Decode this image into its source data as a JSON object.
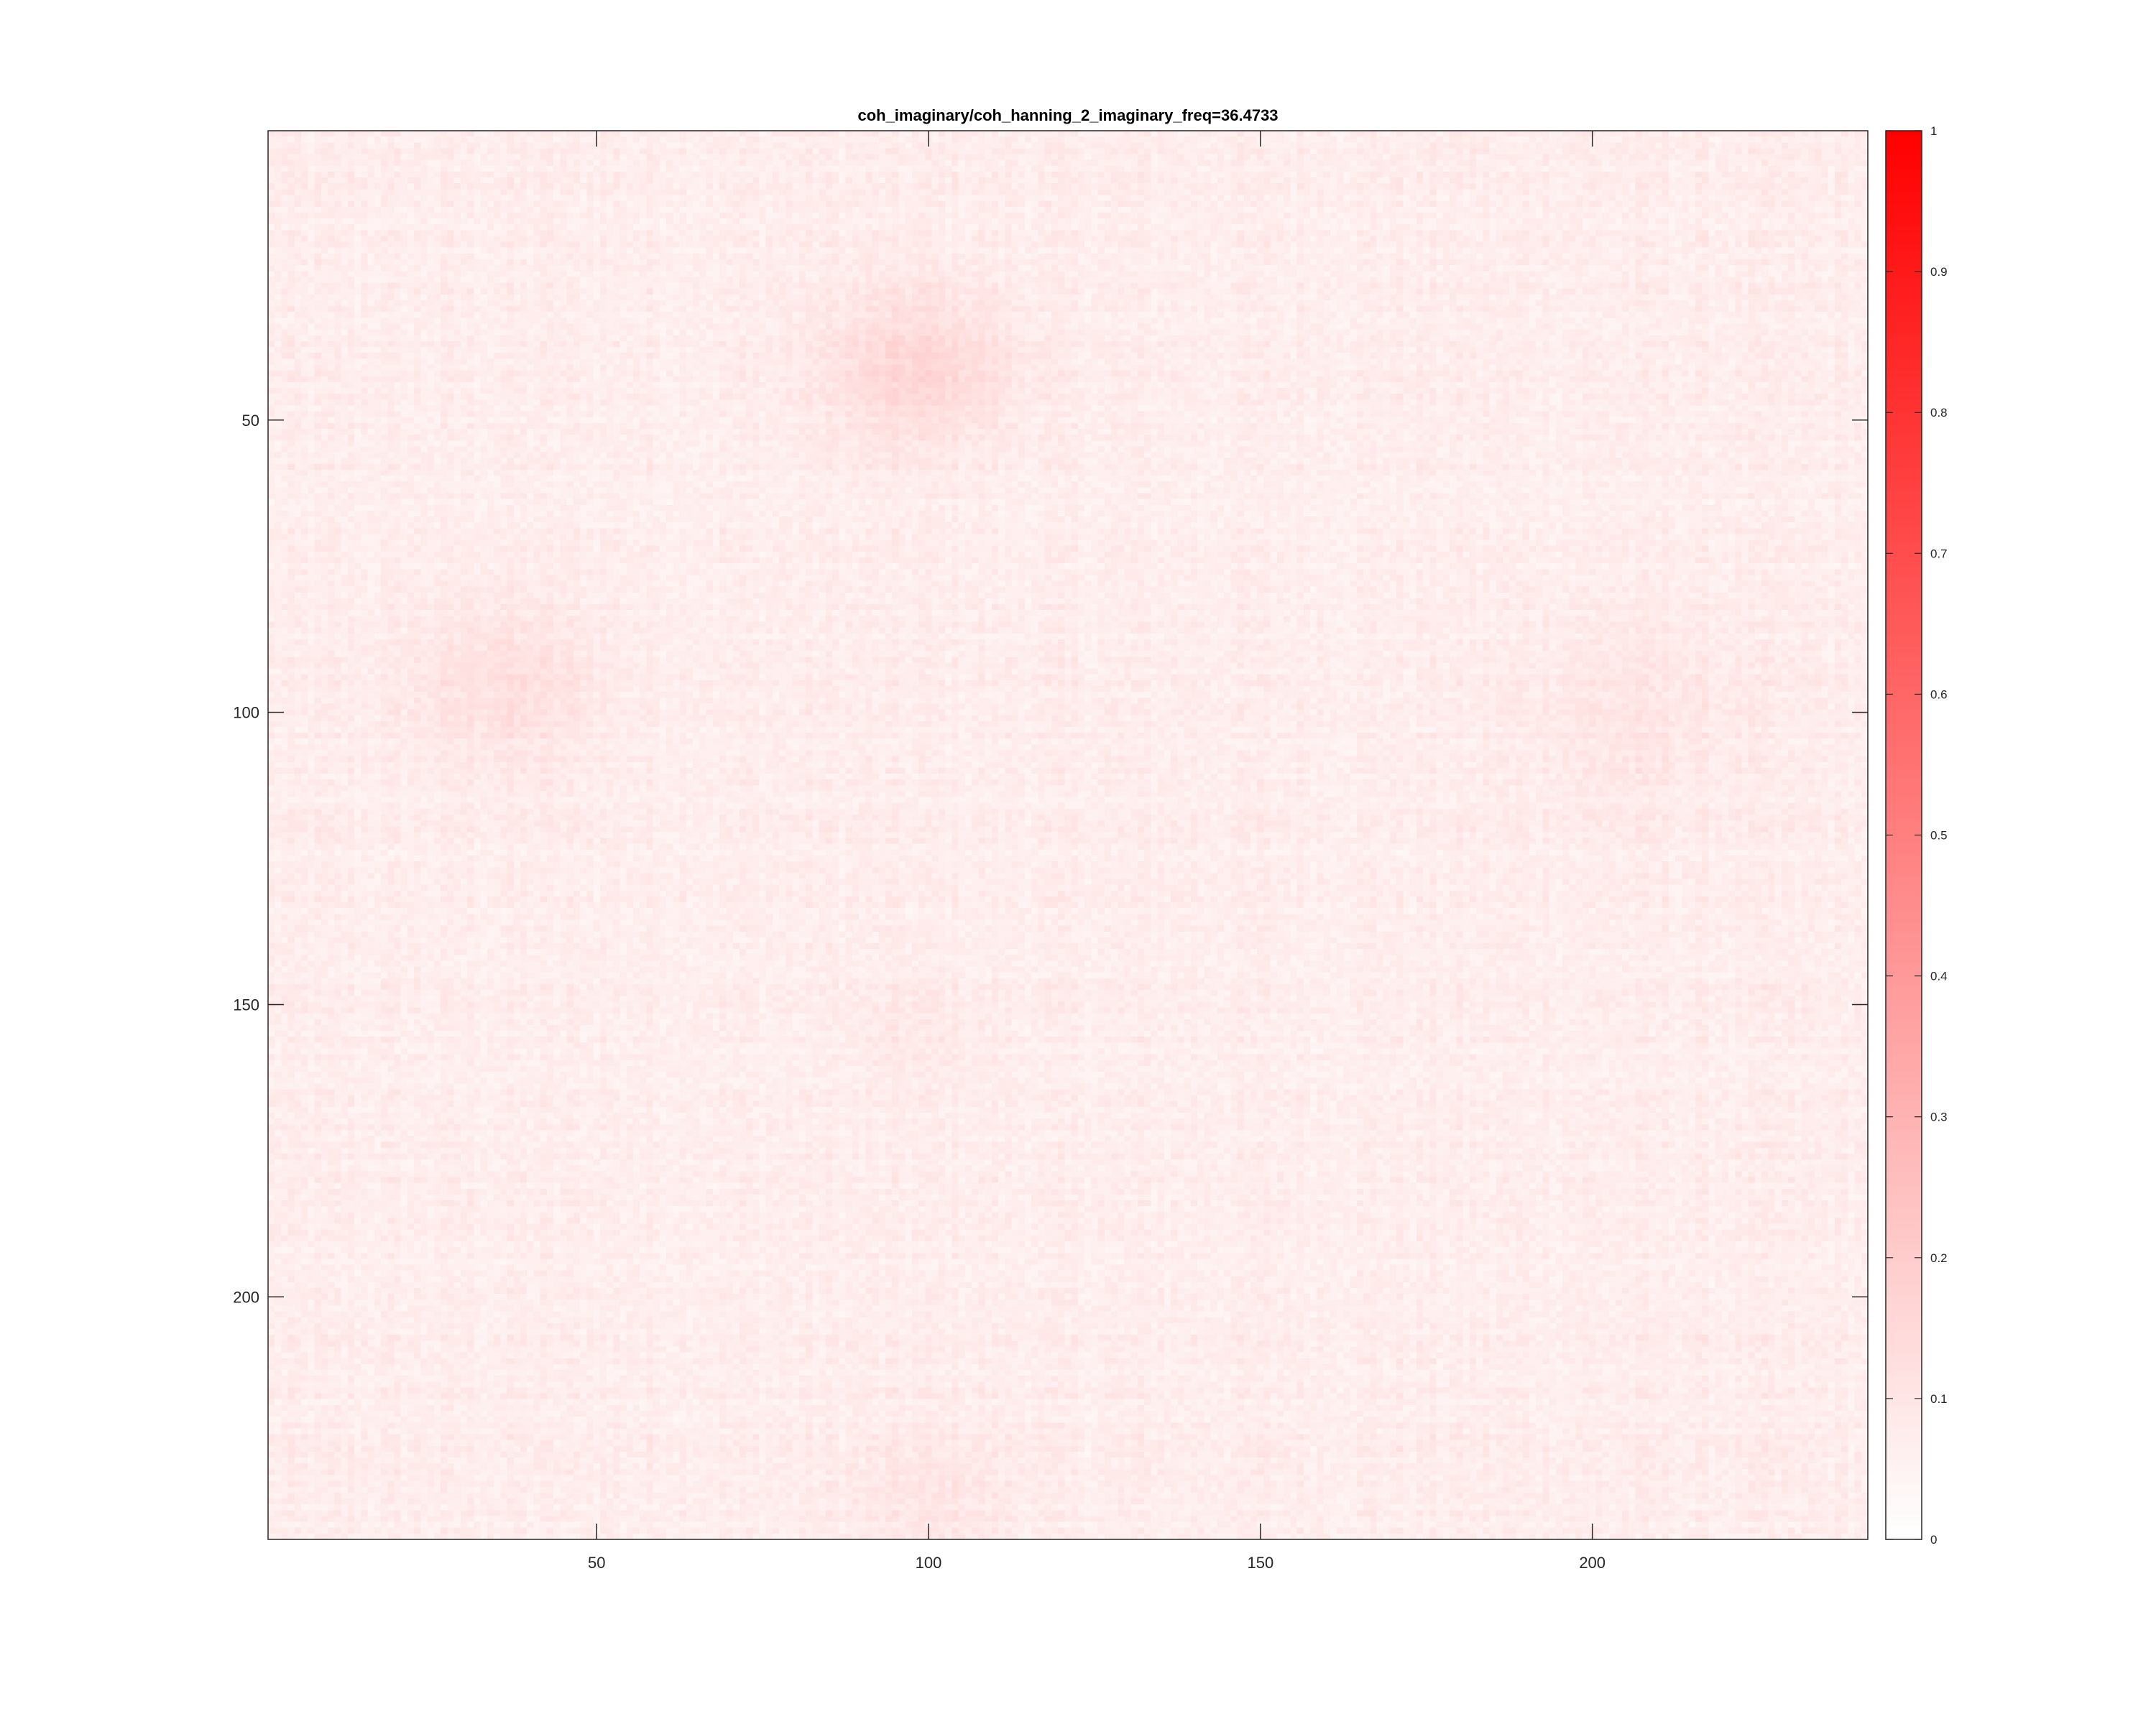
{
  "chart_data": {
    "type": "heatmap",
    "title": "coh_imaginary/coh_hanning_2_imaginary_freq=36.4733",
    "xlabel": "",
    "ylabel": "",
    "matrix_size": 241,
    "xlim": [
      0.5,
      241.5
    ],
    "ylim": [
      0.5,
      241.5
    ],
    "y_reversed": true,
    "x_ticks": [
      50,
      100,
      150,
      200
    ],
    "x_tick_labels": [
      "50",
      "100",
      "150",
      "200"
    ],
    "y_ticks": [
      50,
      100,
      150,
      200
    ],
    "y_tick_labels": [
      "50",
      "100",
      "150",
      "200"
    ],
    "colorbar": {
      "location": "right",
      "range": [
        0,
        1
      ],
      "ticks": [
        0,
        0.1,
        0.2,
        0.3,
        0.4,
        0.5,
        0.6,
        0.7,
        0.8,
        0.9,
        1
      ],
      "tick_labels": [
        "0",
        "0.1",
        "0.2",
        "0.3",
        "0.4",
        "0.5",
        "0.6",
        "0.7",
        "0.8",
        "0.9",
        "1"
      ],
      "colormap": [
        "#ffffff",
        "#ff0000"
      ]
    },
    "value_range_estimate": [
      0,
      0.22
    ],
    "typical_value_estimate": 0.08,
    "grid": false
  }
}
